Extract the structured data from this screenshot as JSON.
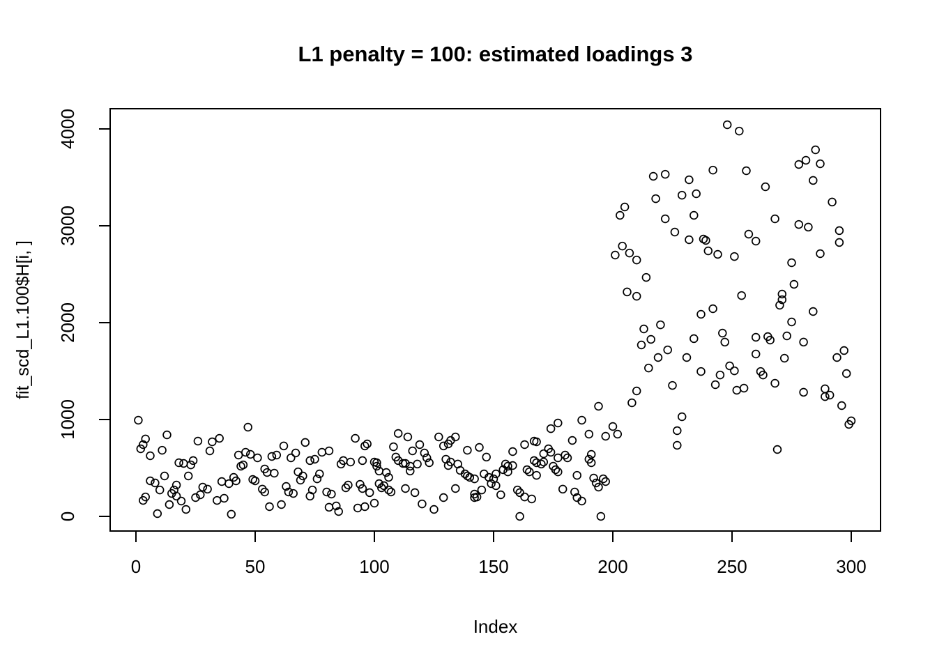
{
  "page": {
    "background": "#ffffff",
    "foreground": "#000000"
  },
  "chart_data": {
    "type": "scatter",
    "title": "L1 penalty = 100: estimated loadings 3",
    "xlabel": "Index",
    "ylabel": "fit_scd_L1.100$H[i, ]",
    "xlim": [
      -11,
      312
    ],
    "ylim": [
      -150,
      4210
    ],
    "x_ticks": [
      0,
      50,
      100,
      150,
      200,
      250,
      300
    ],
    "y_ticks": [
      0,
      1000,
      2000,
      3000,
      4000
    ],
    "grid": false,
    "legend": null,
    "marker": "open-circle",
    "marker_color": "#000000",
    "points": [
      [
        1,
        993
      ],
      [
        2,
        698
      ],
      [
        3,
        741
      ],
      [
        3,
        165
      ],
      [
        4,
        799
      ],
      [
        4,
        201
      ],
      [
        6,
        626
      ],
      [
        6,
        367
      ],
      [
        8,
        345
      ],
      [
        9,
        29
      ],
      [
        10,
        273
      ],
      [
        11,
        683
      ],
      [
        12,
        417
      ],
      [
        13,
        842
      ],
      [
        14,
        122
      ],
      [
        15,
        237
      ],
      [
        16,
        273
      ],
      [
        17,
        324
      ],
      [
        17,
        209
      ],
      [
        18,
        554
      ],
      [
        19,
        158
      ],
      [
        20,
        547
      ],
      [
        21,
        72
      ],
      [
        23,
        532
      ],
      [
        24,
        576
      ],
      [
        22,
        417
      ],
      [
        25,
        194
      ],
      [
        26,
        777
      ],
      [
        27,
        223
      ],
      [
        28,
        302
      ],
      [
        30,
        281
      ],
      [
        31,
        676
      ],
      [
        32,
        770
      ],
      [
        35,
        806
      ],
      [
        34,
        165
      ],
      [
        37,
        187
      ],
      [
        36,
        360
      ],
      [
        39,
        338
      ],
      [
        40,
        22
      ],
      [
        41,
        403
      ],
      [
        42,
        367
      ],
      [
        43,
        633
      ],
      [
        44,
        518
      ],
      [
        45,
        532
      ],
      [
        46,
        662
      ],
      [
        47,
        921
      ],
      [
        48,
        640
      ],
      [
        49,
        381
      ],
      [
        51,
        604
      ],
      [
        50,
        367
      ],
      [
        53,
        281
      ],
      [
        54,
        489
      ],
      [
        54,
        252
      ],
      [
        55,
        453
      ],
      [
        56,
        101
      ],
      [
        57,
        619
      ],
      [
        58,
        446
      ],
      [
        59,
        633
      ],
      [
        61,
        122
      ],
      [
        62,
        727
      ],
      [
        63,
        309
      ],
      [
        65,
        604
      ],
      [
        64,
        252
      ],
      [
        66,
        237
      ],
      [
        67,
        655
      ],
      [
        68,
        460
      ],
      [
        70,
        417
      ],
      [
        69,
        374
      ],
      [
        71,
        763
      ],
      [
        73,
        576
      ],
      [
        73,
        209
      ],
      [
        74,
        273
      ],
      [
        75,
        590
      ],
      [
        76,
        388
      ],
      [
        77,
        439
      ],
      [
        78,
        662
      ],
      [
        80,
        252
      ],
      [
        81,
        676
      ],
      [
        81,
        94
      ],
      [
        82,
        230
      ],
      [
        84,
        108
      ],
      [
        85,
        50
      ],
      [
        86,
        540
      ],
      [
        87,
        576
      ],
      [
        88,
        295
      ],
      [
        89,
        324
      ],
      [
        90,
        561
      ],
      [
        92,
        806
      ],
      [
        93,
        86
      ],
      [
        94,
        331
      ],
      [
        95,
        576
      ],
      [
        95,
        288
      ],
      [
        96,
        727
      ],
      [
        96,
        101
      ],
      [
        97,
        748
      ],
      [
        98,
        245
      ],
      [
        100,
        561
      ],
      [
        100,
        137
      ],
      [
        101,
        554
      ],
      [
        101,
        518
      ],
      [
        102,
        468
      ],
      [
        102,
        338
      ],
      [
        103,
        295
      ],
      [
        104,
        317
      ],
      [
        105,
        453
      ],
      [
        106,
        403
      ],
      [
        106,
        273
      ],
      [
        107,
        252
      ],
      [
        108,
        719
      ],
      [
        109,
        612
      ],
      [
        110,
        856
      ],
      [
        110,
        576
      ],
      [
        112,
        547
      ],
      [
        113,
        547
      ],
      [
        113,
        288
      ],
      [
        114,
        820
      ],
      [
        115,
        518
      ],
      [
        115,
        468
      ],
      [
        116,
        676
      ],
      [
        117,
        245
      ],
      [
        118,
        540
      ],
      [
        119,
        741
      ],
      [
        120,
        129
      ],
      [
        121,
        655
      ],
      [
        122,
        604
      ],
      [
        123,
        554
      ],
      [
        125,
        72
      ],
      [
        127,
        820
      ],
      [
        129,
        727
      ],
      [
        129,
        194
      ],
      [
        130,
        590
      ],
      [
        131,
        748
      ],
      [
        131,
        525
      ],
      [
        132,
        784
      ],
      [
        132,
        561
      ],
      [
        134,
        820
      ],
      [
        134,
        288
      ],
      [
        135,
        540
      ],
      [
        136,
        475
      ],
      [
        138,
        439
      ],
      [
        139,
        417
      ],
      [
        139,
        683
      ],
      [
        140,
        403
      ],
      [
        142,
        388
      ],
      [
        142,
        230
      ],
      [
        142,
        194
      ],
      [
        143,
        201
      ],
      [
        144,
        712
      ],
      [
        145,
        273
      ],
      [
        146,
        439
      ],
      [
        147,
        612
      ],
      [
        148,
        403
      ],
      [
        149,
        338
      ],
      [
        150,
        388
      ],
      [
        151,
        317
      ],
      [
        151,
        439
      ],
      [
        153,
        223
      ],
      [
        154,
        482
      ],
      [
        155,
        540
      ],
      [
        156,
        518
      ],
      [
        156,
        460
      ],
      [
        158,
        669
      ],
      [
        158,
        525
      ],
      [
        160,
        273
      ],
      [
        161,
        245
      ],
      [
        161,
        0
      ],
      [
        163,
        741
      ],
      [
        163,
        201
      ],
      [
        164,
        482
      ],
      [
        165,
        460
      ],
      [
        166,
        180
      ],
      [
        167,
        777
      ],
      [
        167,
        576
      ],
      [
        168,
        770
      ],
      [
        168,
        554
      ],
      [
        168,
        424
      ],
      [
        170,
        540
      ],
      [
        171,
        647
      ],
      [
        171,
        561
      ],
      [
        173,
        698
      ],
      [
        174,
        906
      ],
      [
        174,
        662
      ],
      [
        175,
        518
      ],
      [
        176,
        482
      ],
      [
        177,
        964
      ],
      [
        177,
        604
      ],
      [
        177,
        460
      ],
      [
        179,
        281
      ],
      [
        180,
        633
      ],
      [
        181,
        604
      ],
      [
        183,
        784
      ],
      [
        184,
        252
      ],
      [
        185,
        424
      ],
      [
        185,
        194
      ],
      [
        187,
        993
      ],
      [
        187,
        158
      ],
      [
        190,
        849
      ],
      [
        190,
        590
      ],
      [
        191,
        554
      ],
      [
        191,
        640
      ],
      [
        192,
        396
      ],
      [
        193,
        345
      ],
      [
        194,
        1137
      ],
      [
        194,
        302
      ],
      [
        195,
        0
      ],
      [
        196,
        388
      ],
      [
        197,
        827
      ],
      [
        197,
        360
      ],
      [
        200,
        928
      ],
      [
        202,
        849
      ],
      [
        201,
        2698
      ],
      [
        203,
        3108
      ],
      [
        204,
        2791
      ],
      [
        205,
        3194
      ],
      [
        206,
        2317
      ],
      [
        207,
        2719
      ],
      [
        210,
        2647
      ],
      [
        210,
        2273
      ],
      [
        214,
        2467
      ],
      [
        217,
        3511
      ],
      [
        218,
        3280
      ],
      [
        222,
        3532
      ],
      [
        222,
        3072
      ],
      [
        226,
        2935
      ],
      [
        229,
        3316
      ],
      [
        232,
        3475
      ],
      [
        232,
        2856
      ],
      [
        234,
        3108
      ],
      [
        235,
        3331
      ],
      [
        238,
        2863
      ],
      [
        239,
        2849
      ],
      [
        240,
        2741
      ],
      [
        242,
        3575
      ],
      [
        244,
        2705
      ],
      [
        248,
        4043
      ],
      [
        251,
        2683
      ],
      [
        253,
        3978
      ],
      [
        256,
        3568
      ],
      [
        257,
        2914
      ],
      [
        260,
        2842
      ],
      [
        264,
        3403
      ],
      [
        268,
        3072
      ],
      [
        275,
        2619
      ],
      [
        276,
        2396
      ],
      [
        278,
        3633
      ],
      [
        278,
        3014
      ],
      [
        281,
        3676
      ],
      [
        282,
        2986
      ],
      [
        284,
        3468
      ],
      [
        285,
        3784
      ],
      [
        287,
        3640
      ],
      [
        287,
        2712
      ],
      [
        292,
        3245
      ],
      [
        295,
        2950
      ],
      [
        295,
        2828
      ],
      [
        208,
        1173
      ],
      [
        210,
        1295
      ],
      [
        212,
        1770
      ],
      [
        213,
        1935
      ],
      [
        215,
        1532
      ],
      [
        216,
        1827
      ],
      [
        219,
        1640
      ],
      [
        220,
        1978
      ],
      [
        223,
        1719
      ],
      [
        225,
        1352
      ],
      [
        227,
        885
      ],
      [
        227,
        734
      ],
      [
        229,
        1029
      ],
      [
        231,
        1640
      ],
      [
        234,
        1835
      ],
      [
        237,
        2086
      ],
      [
        237,
        1496
      ],
      [
        242,
        2144
      ],
      [
        243,
        1360
      ],
      [
        245,
        1460
      ],
      [
        246,
        1892
      ],
      [
        247,
        1799
      ],
      [
        249,
        1554
      ],
      [
        251,
        1503
      ],
      [
        252,
        1302
      ],
      [
        254,
        2280
      ],
      [
        255,
        1324
      ],
      [
        260,
        1849
      ],
      [
        260,
        1676
      ],
      [
        262,
        1496
      ],
      [
        263,
        1460
      ],
      [
        265,
        1856
      ],
      [
        266,
        1820
      ],
      [
        268,
        1374
      ],
      [
        269,
        691
      ],
      [
        270,
        2180
      ],
      [
        271,
        2295
      ],
      [
        271,
        2237
      ],
      [
        272,
        1633
      ],
      [
        273,
        1863
      ],
      [
        275,
        2007
      ],
      [
        280,
        1799
      ],
      [
        280,
        1281
      ],
      [
        284,
        2115
      ],
      [
        289,
        1317
      ],
      [
        289,
        1237
      ],
      [
        291,
        1252
      ],
      [
        294,
        1640
      ],
      [
        296,
        1144
      ],
      [
        297,
        1712
      ],
      [
        298,
        1475
      ],
      [
        299,
        950
      ],
      [
        300,
        986
      ]
    ]
  }
}
